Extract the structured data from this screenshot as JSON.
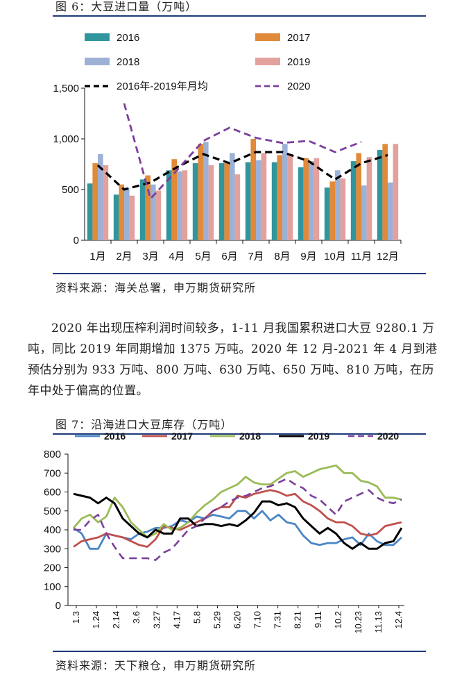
{
  "figure6": {
    "title": "图 6：大豆进口量（万吨）",
    "source": "资料来源：海关总署，申万期货研究所"
  },
  "paragraph": {
    "text": "2020 年出现压榨利润时间较多，1-11 月我国累积进口大豆 9280.1 万吨，同比 2019 年同期增加 1375 万吨。2020 年 12 月-2021 年 4 月到港预估分别为 933 万吨、800 万吨、630 万吨、650 万吨、810 万吨，在历年中处于偏高的位置。"
  },
  "figure7": {
    "title": "图 7：沿海进口大豆库存（万吨）",
    "source": "资料来源：天下粮仓，申万期货研究所"
  },
  "colors": {
    "rule": "#1f3a78",
    "bar2016": "#31959d",
    "bar2017": "#e08a3a",
    "bar2018": "#9db1d6",
    "bar2019": "#e3a19d",
    "avg": "#000000",
    "line2020": "#7b3f9c",
    "l2016": "#4a86c5",
    "l2017": "#c0504d",
    "l2018": "#9bbb59",
    "l2019": "#000000",
    "l2020": "#7b3f9c"
  },
  "chart_data": [
    {
      "type": "bar",
      "categories": [
        "1月",
        "2月",
        "3月",
        "4月",
        "5月",
        "6月",
        "7月",
        "8月",
        "9月",
        "10月",
        "11月",
        "12月"
      ],
      "ylim": [
        0,
        1500
      ],
      "yticks": [
        0,
        500,
        1000,
        1500
      ],
      "ytick_labels": [
        "0",
        "500",
        "1,000",
        "1,500"
      ],
      "legend_position": "top",
      "series": [
        {
          "name": "2016",
          "kind": "bar",
          "values": [
            560,
            450,
            600,
            690,
            760,
            760,
            770,
            770,
            720,
            520,
            780,
            890
          ]
        },
        {
          "name": "2017",
          "kind": "bar",
          "values": [
            760,
            550,
            640,
            800,
            950,
            760,
            1000,
            840,
            810,
            580,
            860,
            950
          ]
        },
        {
          "name": "2018",
          "kind": "bar",
          "values": [
            850,
            520,
            550,
            680,
            970,
            860,
            790,
            950,
            780,
            690,
            540,
            570
          ]
        },
        {
          "name": "2019",
          "kind": "bar",
          "values": [
            740,
            440,
            490,
            690,
            740,
            650,
            860,
            850,
            810,
            610,
            820,
            950
          ]
        },
        {
          "name": "2016年-2019年月均",
          "kind": "line-dashed",
          "values": [
            740,
            500,
            570,
            720,
            850,
            760,
            870,
            870,
            780,
            600,
            760,
            840
          ]
        },
        {
          "name": "2020",
          "kind": "line-dashed",
          "values": [
            null,
            1350,
            410,
            690,
            980,
            1110,
            1010,
            960,
            980,
            870,
            970,
            null
          ]
        }
      ]
    },
    {
      "type": "line",
      "x_tick_labels": [
        "1.3",
        "1.24",
        "2.14",
        "3.6",
        "3.27",
        "4.17",
        "5.8",
        "5.29",
        "6.20",
        "7.10",
        "7.31",
        "8.21",
        "9.11",
        "10.2",
        "10.23",
        "11.13",
        "12.4"
      ],
      "ylim": [
        0,
        800
      ],
      "yticks": [
        0,
        100,
        200,
        300,
        400,
        500,
        600,
        700,
        800
      ],
      "legend_position": "top",
      "series": [
        {
          "name": "2016",
          "values": [
            410,
            380,
            300,
            300,
            380,
            370,
            360,
            350,
            380,
            390,
            410,
            410,
            420,
            450,
            440,
            470,
            460,
            480,
            470,
            460,
            500,
            500,
            460,
            500,
            450,
            480,
            440,
            430,
            370,
            330,
            320,
            330,
            330,
            350,
            360,
            320,
            380,
            340,
            320,
            320,
            360
          ]
        },
        {
          "name": "2017",
          "values": [
            310,
            340,
            350,
            360,
            380,
            370,
            360,
            340,
            320,
            310,
            350,
            420,
            410,
            400,
            420,
            440,
            460,
            500,
            520,
            520,
            580,
            570,
            590,
            600,
            610,
            600,
            580,
            590,
            550,
            530,
            500,
            460,
            440,
            440,
            420,
            380,
            370,
            380,
            420,
            430,
            440
          ]
        },
        {
          "name": "2018",
          "values": [
            410,
            460,
            480,
            440,
            470,
            570,
            520,
            440,
            400,
            360,
            380,
            430,
            400,
            410,
            440,
            490,
            530,
            560,
            600,
            620,
            640,
            680,
            650,
            640,
            640,
            670,
            700,
            710,
            680,
            700,
            720,
            730,
            740,
            700,
            700,
            660,
            650,
            630,
            570,
            570,
            560
          ]
        },
        {
          "name": "2019",
          "values": [
            590,
            580,
            570,
            540,
            570,
            540,
            460,
            420,
            380,
            360,
            400,
            380,
            380,
            460,
            460,
            420,
            430,
            430,
            420,
            430,
            420,
            450,
            490,
            550,
            550,
            530,
            540,
            520,
            460,
            420,
            380,
            410,
            380,
            330,
            300,
            330,
            300,
            300,
            330,
            340,
            410
          ]
        },
        {
          "name": "2020",
          "values": [
            400,
            400,
            450,
            480,
            380,
            310,
            250,
            250,
            250,
            250,
            240,
            280,
            300,
            350,
            400,
            420,
            460,
            500,
            520,
            550,
            570,
            580,
            600,
            620,
            630,
            650,
            670,
            640,
            620,
            580,
            560,
            520,
            480,
            550,
            570,
            590,
            610,
            570,
            550,
            540,
            560
          ]
        }
      ]
    }
  ]
}
